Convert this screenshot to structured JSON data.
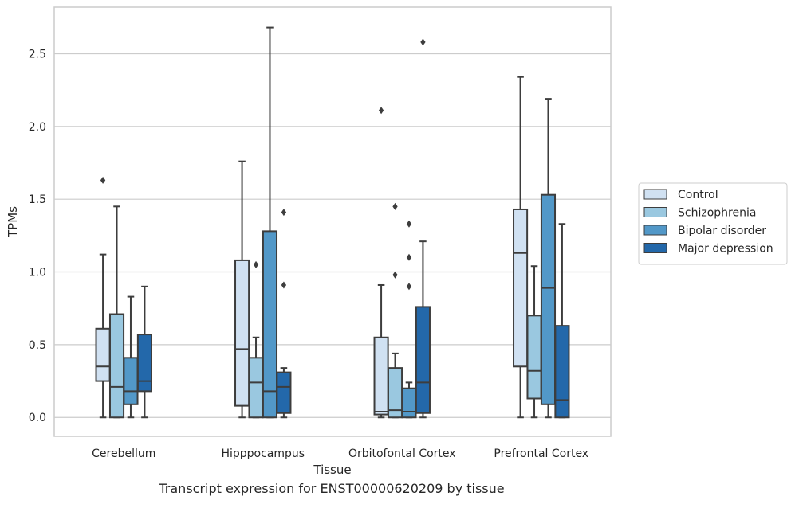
{
  "caption": "Transcript expression for ENST00000620209 by tissue",
  "chart_data": {
    "type": "box",
    "xlabel": "Tissue",
    "ylabel": "TPMs",
    "ylim": [
      -0.13,
      2.82
    ],
    "yticks": [
      0.0,
      0.5,
      1.0,
      1.5,
      2.0,
      2.5
    ],
    "ytick_labels": [
      "0.0",
      "0.5",
      "1.0",
      "1.5",
      "2.0",
      "2.5"
    ],
    "grid": "y",
    "legend_position": "right",
    "categories": [
      "Cerebellum",
      "Hipppocampus",
      "Orbitofontal Cortex",
      "Prefrontal Cortex"
    ],
    "series": [
      {
        "name": "Control",
        "color": "#d0e1f2",
        "boxes": [
          {
            "whislo": 0.0,
            "q1": 0.25,
            "med": 0.35,
            "q3": 0.61,
            "whishi": 1.12,
            "fliers": [
              1.63
            ]
          },
          {
            "whislo": 0.0,
            "q1": 0.08,
            "med": 0.47,
            "q3": 1.08,
            "whishi": 1.76,
            "fliers": []
          },
          {
            "whislo": 0.0,
            "q1": 0.02,
            "med": 0.04,
            "q3": 0.55,
            "whishi": 0.91,
            "fliers": [
              2.11
            ]
          },
          {
            "whislo": 0.0,
            "q1": 0.35,
            "med": 1.13,
            "q3": 1.43,
            "whishi": 2.34,
            "fliers": []
          }
        ]
      },
      {
        "name": "Schizophrenia",
        "color": "#9ac8e0",
        "boxes": [
          {
            "whislo": 0.0,
            "q1": 0.0,
            "med": 0.21,
            "q3": 0.71,
            "whishi": 1.45,
            "fliers": []
          },
          {
            "whislo": 0.0,
            "q1": 0.0,
            "med": 0.24,
            "q3": 0.41,
            "whishi": 0.55,
            "fliers": [
              1.05
            ]
          },
          {
            "whislo": 0.0,
            "q1": 0.0,
            "med": 0.05,
            "q3": 0.34,
            "whishi": 0.44,
            "fliers": [
              0.98,
              1.45
            ]
          },
          {
            "whislo": 0.0,
            "q1": 0.13,
            "med": 0.32,
            "q3": 0.7,
            "whishi": 1.04,
            "fliers": []
          }
        ]
      },
      {
        "name": "Bipolar disorder",
        "color": "#5298c8",
        "boxes": [
          {
            "whislo": 0.0,
            "q1": 0.09,
            "med": 0.18,
            "q3": 0.41,
            "whishi": 0.83,
            "fliers": []
          },
          {
            "whislo": 0.0,
            "q1": 0.0,
            "med": 0.18,
            "q3": 1.28,
            "whishi": 2.68,
            "fliers": []
          },
          {
            "whislo": 0.0,
            "q1": 0.0,
            "med": 0.04,
            "q3": 0.2,
            "whishi": 0.24,
            "fliers": [
              0.9,
              1.1,
              1.33
            ]
          },
          {
            "whislo": 0.0,
            "q1": 0.09,
            "med": 0.89,
            "q3": 1.53,
            "whishi": 2.19,
            "fliers": []
          }
        ]
      },
      {
        "name": "Major depression",
        "color": "#2368aa",
        "boxes": [
          {
            "whislo": 0.0,
            "q1": 0.18,
            "med": 0.25,
            "q3": 0.57,
            "whishi": 0.9,
            "fliers": []
          },
          {
            "whislo": 0.0,
            "q1": 0.03,
            "med": 0.21,
            "q3": 0.31,
            "whishi": 0.34,
            "fliers": [
              0.91,
              1.41
            ]
          },
          {
            "whislo": 0.0,
            "q1": 0.03,
            "med": 0.24,
            "q3": 0.76,
            "whishi": 1.21,
            "fliers": [
              2.58
            ]
          },
          {
            "whislo": 0.0,
            "q1": 0.0,
            "med": 0.12,
            "q3": 0.63,
            "whishi": 1.33,
            "fliers": []
          }
        ]
      }
    ]
  }
}
